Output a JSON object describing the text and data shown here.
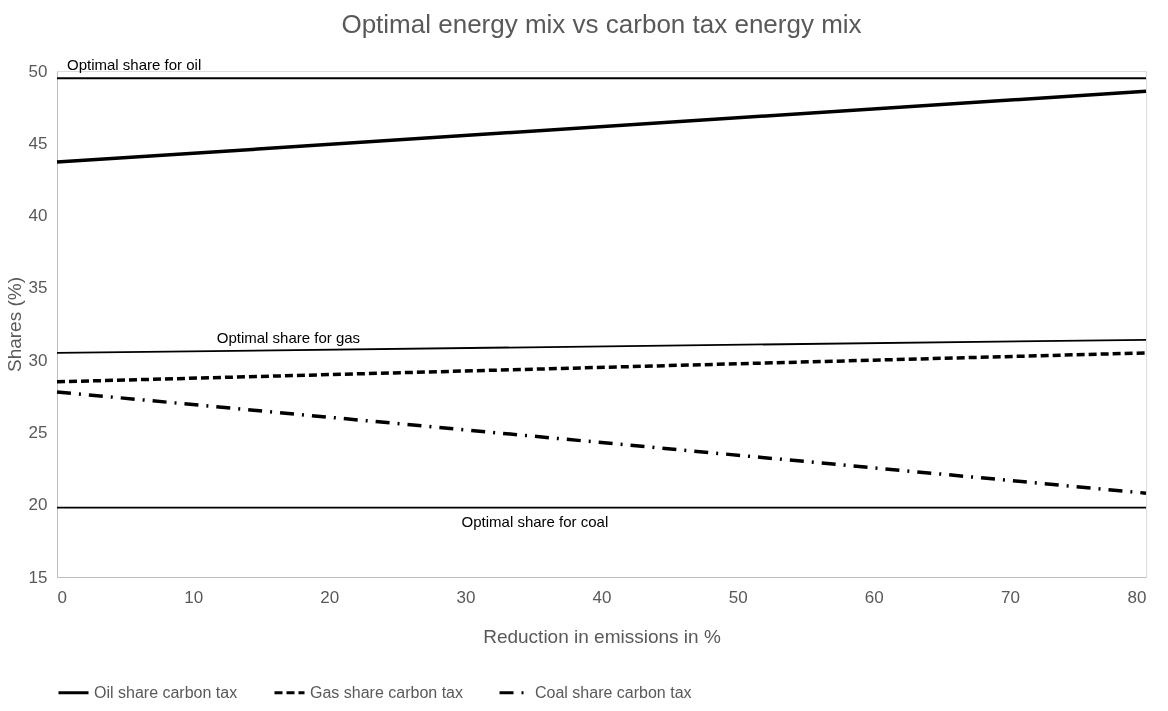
{
  "chart_data": {
    "type": "line",
    "title": "Optimal energy mix vs carbon tax energy mix",
    "xlabel": "Reduction in emissions in %",
    "ylabel": "Shares (%)",
    "x": [
      0,
      80
    ],
    "series": [
      {
        "name": "Oil share carbon tax",
        "color": "#000000",
        "values": [
          43.7,
          48.6
        ],
        "line_style": "solid"
      },
      {
        "name": "Gas share carbon tax",
        "color": "#000000",
        "values": [
          28.5,
          30.5
        ],
        "line_style": "dashed"
      },
      {
        "name": "Coal share carbon tax",
        "color": "#000000",
        "values": [
          27.8,
          20.8
        ],
        "line_style": "dashdot"
      },
      {
        "color": "#000000",
        "values": [
          30.5,
          31.4
        ],
        "line_style": "solid"
      }
    ],
    "ref_lines": [
      {
        "axis": "y",
        "value": 49.5,
        "label": "Optimal share for oil",
        "color": "#000000"
      },
      {
        "axis": "y",
        "value": 19.8,
        "label": "Optimal share for coal",
        "color": "#000000"
      }
    ],
    "annotations": [
      {
        "text": "Optimal share for gas",
        "x": 17,
        "y": 30.7
      }
    ],
    "xlim": [
      0,
      80
    ],
    "xticks": [
      0,
      10,
      20,
      30,
      40,
      50,
      60,
      70,
      80
    ],
    "ylim": [
      15,
      50
    ],
    "yticks": [
      15,
      20,
      25,
      30,
      35,
      40,
      45,
      50
    ],
    "grid": false,
    "legend": "bottom"
  }
}
